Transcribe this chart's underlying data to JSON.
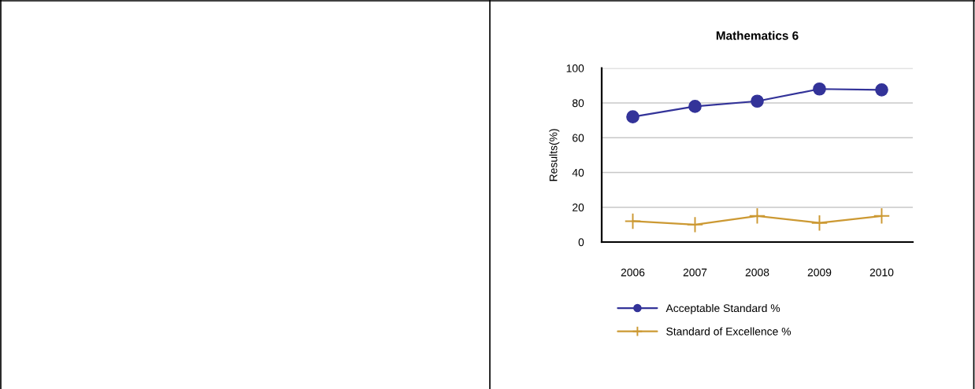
{
  "chart_data": {
    "type": "line",
    "title": "Mathematics 6",
    "ylabel": "Results(%)",
    "categories": [
      "2006",
      "2007",
      "2008",
      "2009",
      "2010"
    ],
    "series": [
      {
        "name": "Acceptable Standard %",
        "color": "#333399",
        "marker": "circle",
        "values": [
          72,
          78,
          81,
          88,
          87.5
        ]
      },
      {
        "name": "Standard of Excellence %",
        "color": "#cc9933",
        "marker": "cross",
        "values": [
          12,
          10,
          15,
          11,
          15
        ]
      }
    ],
    "ylim": [
      0,
      100
    ],
    "yticks": [
      0,
      20,
      40,
      60,
      80,
      100
    ],
    "grid": "y",
    "legend": "bottom"
  }
}
